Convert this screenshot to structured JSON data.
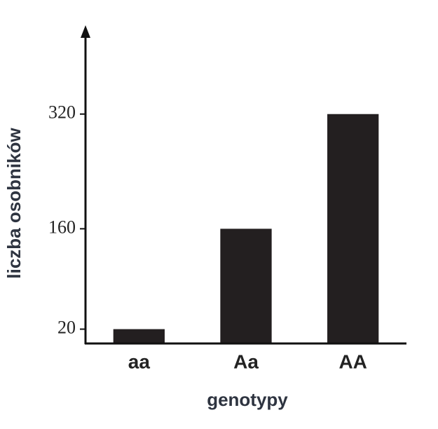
{
  "chart_data": {
    "type": "bar",
    "x_label": "genotypy",
    "y_label": "liczba osobników",
    "categories": [
      "aa",
      "Aa",
      "AA"
    ],
    "values": [
      20,
      160,
      320
    ],
    "color": "#231f20",
    "ylim": [
      0,
      440
    ],
    "yticks": [
      20,
      160,
      320
    ],
    "grid": false
  }
}
